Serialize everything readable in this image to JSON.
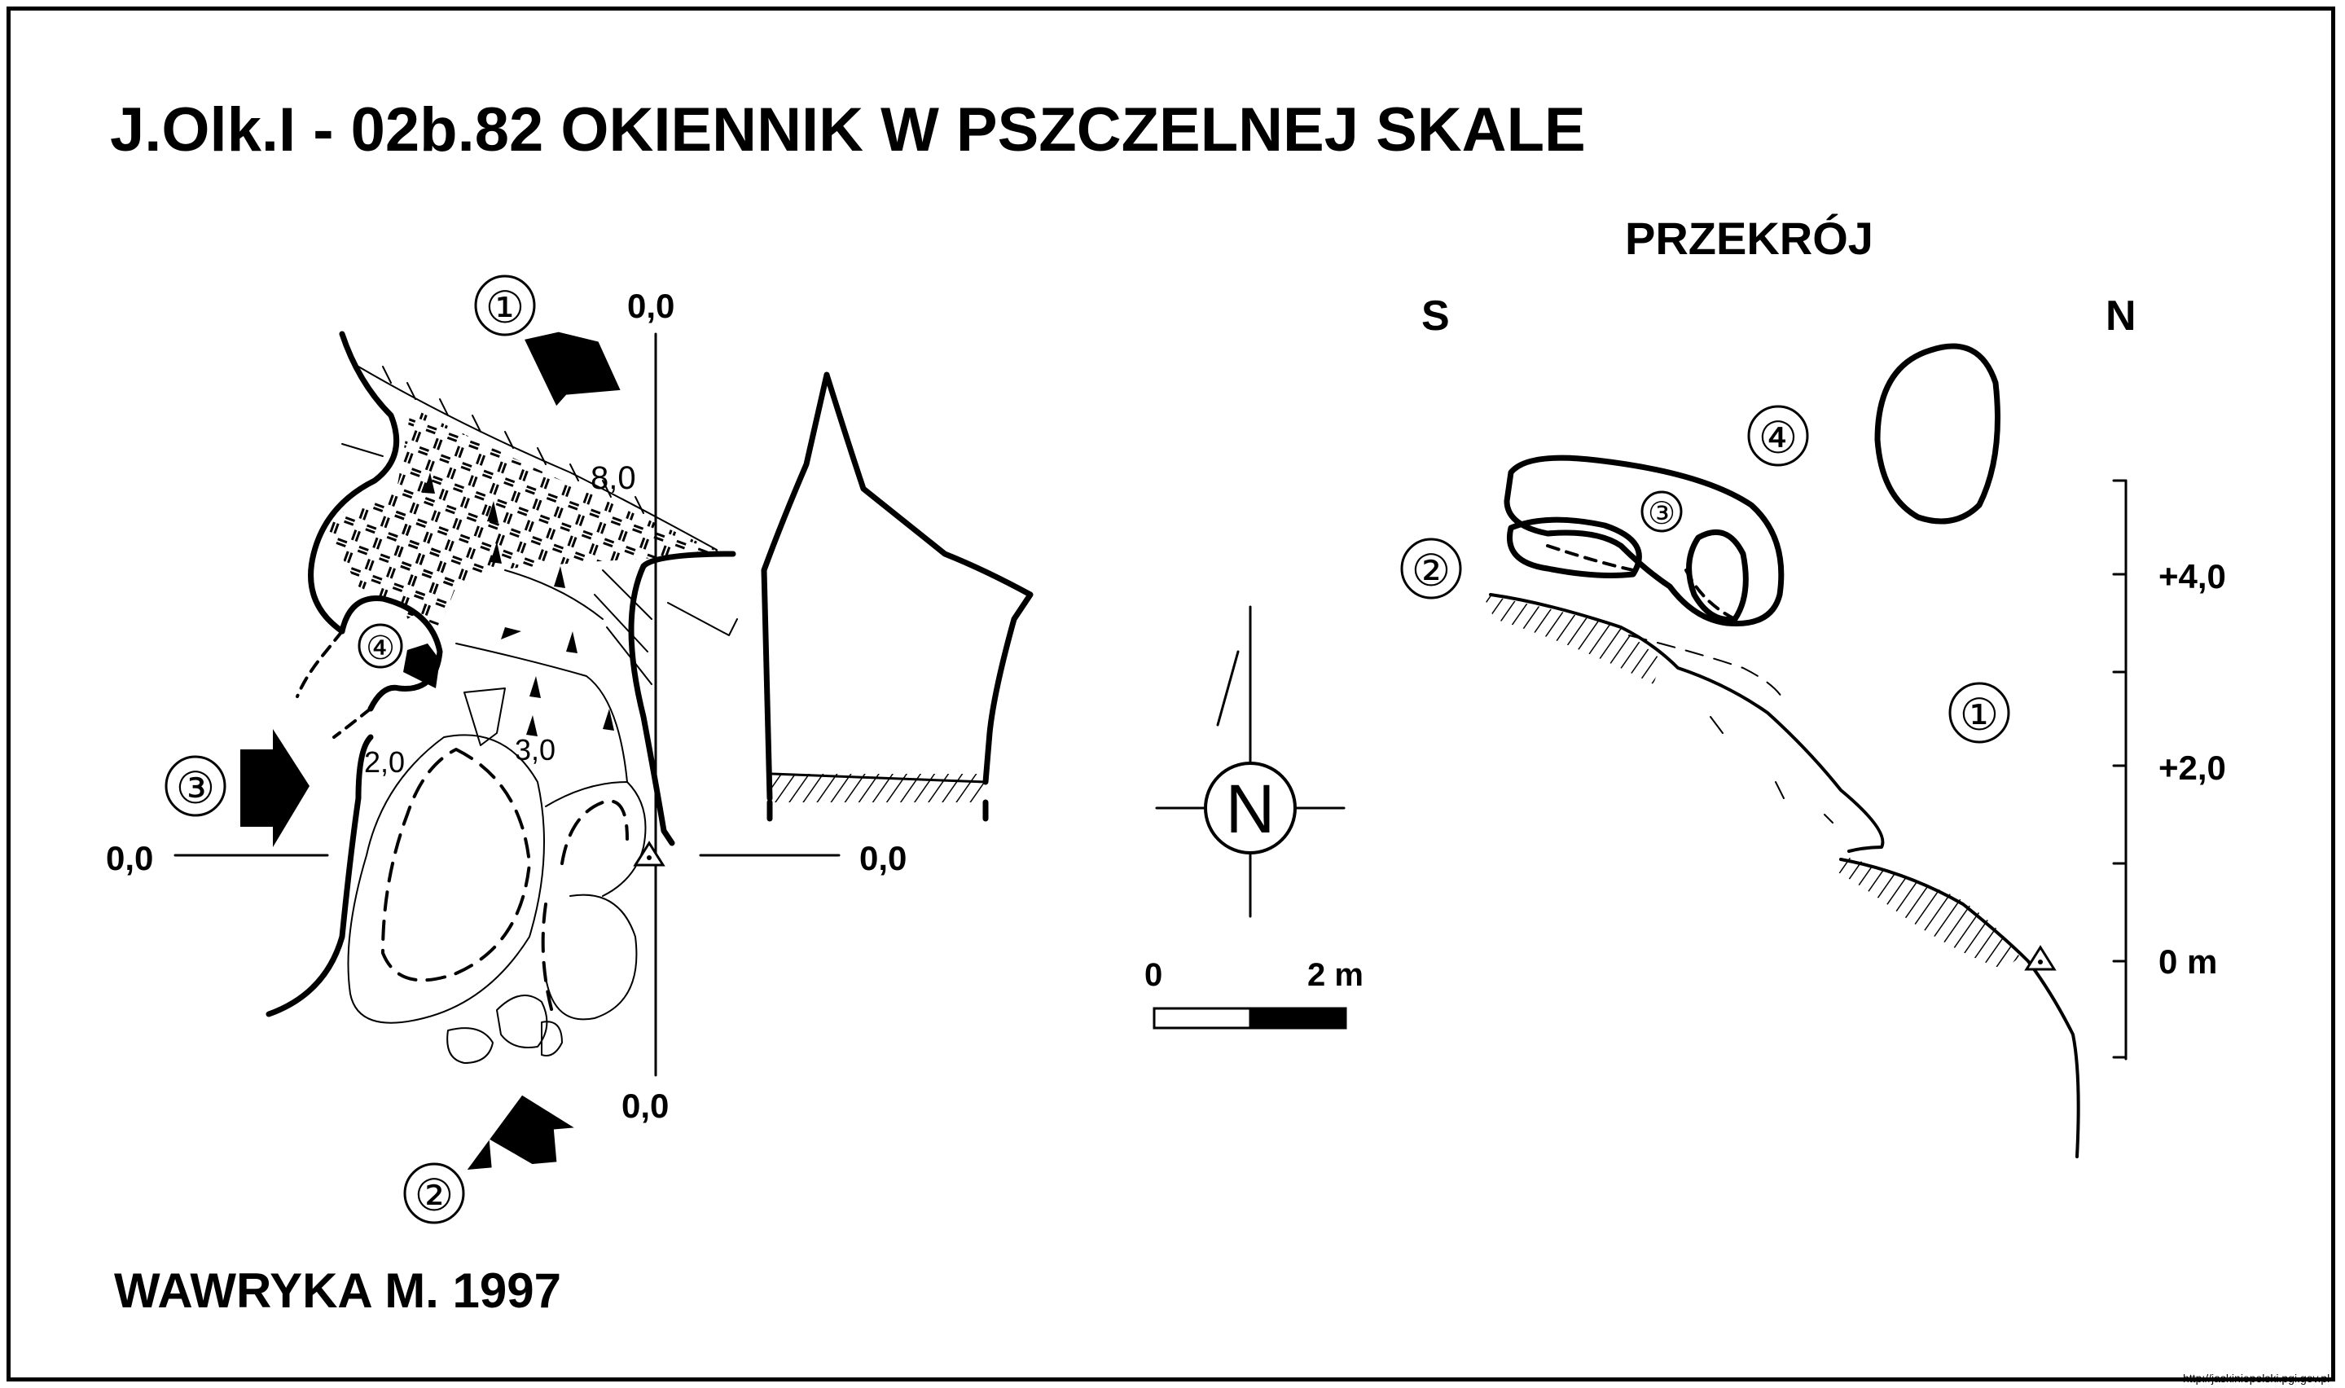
{
  "title": "J.Olk.I - 02b.82  OKIENNIK W PSZCZELNEJ SKALE",
  "author": "WAWRYKA M. 1997",
  "source_url": "http://jaskiniepolski.pgi.gov.pl",
  "plan": {
    "axis_top": "0,0",
    "axis_left": "0,0",
    "axis_right": "0,0",
    "axis_bottom": "0,0",
    "height_labels": [
      "8,0",
      "2,0",
      "3,0"
    ],
    "entrance_markers": [
      "①",
      "②",
      "③",
      "④"
    ]
  },
  "north": {
    "label": "N"
  },
  "scale": {
    "start": "0",
    "end": "2 m"
  },
  "section": {
    "title": "PRZEKRÓJ",
    "left_dir": "S",
    "right_dir": "N",
    "markers": [
      "①",
      "②",
      "③",
      "④"
    ],
    "elevation_labels": [
      "+4,0",
      "+2,0",
      "0 m"
    ]
  },
  "colors": {
    "ink": "#000000",
    "paper": "#ffffff"
  }
}
